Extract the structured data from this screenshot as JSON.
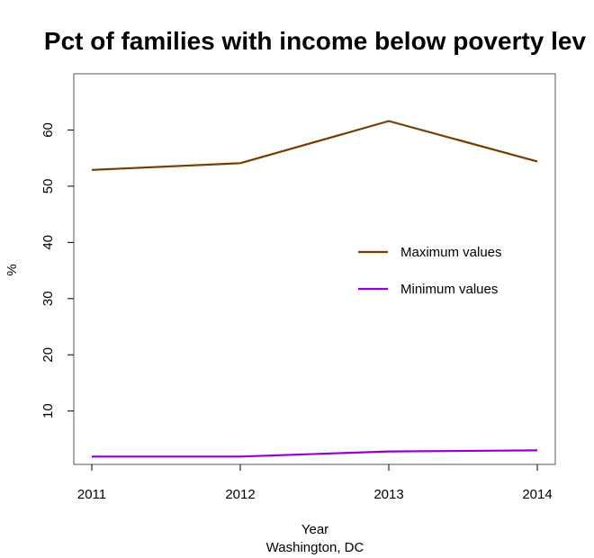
{
  "chart_data": {
    "type": "line",
    "title": "Pct of families with income below poverty lev",
    "xlabel": "Year",
    "subxlabel": "Washington, DC",
    "ylabel": "%",
    "x": [
      2011,
      2012,
      2013,
      2014
    ],
    "x_tick_labels": [
      "2011",
      "2012",
      "2013",
      "2014"
    ],
    "y_ticks": [
      10,
      20,
      30,
      40,
      50,
      60
    ],
    "y_tick_labels": [
      "10",
      "20",
      "30",
      "40",
      "50",
      "60"
    ],
    "xlim": [
      2011,
      2014
    ],
    "ylim": [
      0.5,
      70
    ],
    "grid": false,
    "legend_position": "right",
    "series": [
      {
        "name": "Maximum values",
        "color": "#7a3b00",
        "values": [
          52.9,
          54.1,
          61.6,
          54.4
        ]
      },
      {
        "name": "Minimum values",
        "color": "#9400d3",
        "values": [
          1.9,
          1.9,
          2.8,
          3.0
        ]
      }
    ]
  }
}
